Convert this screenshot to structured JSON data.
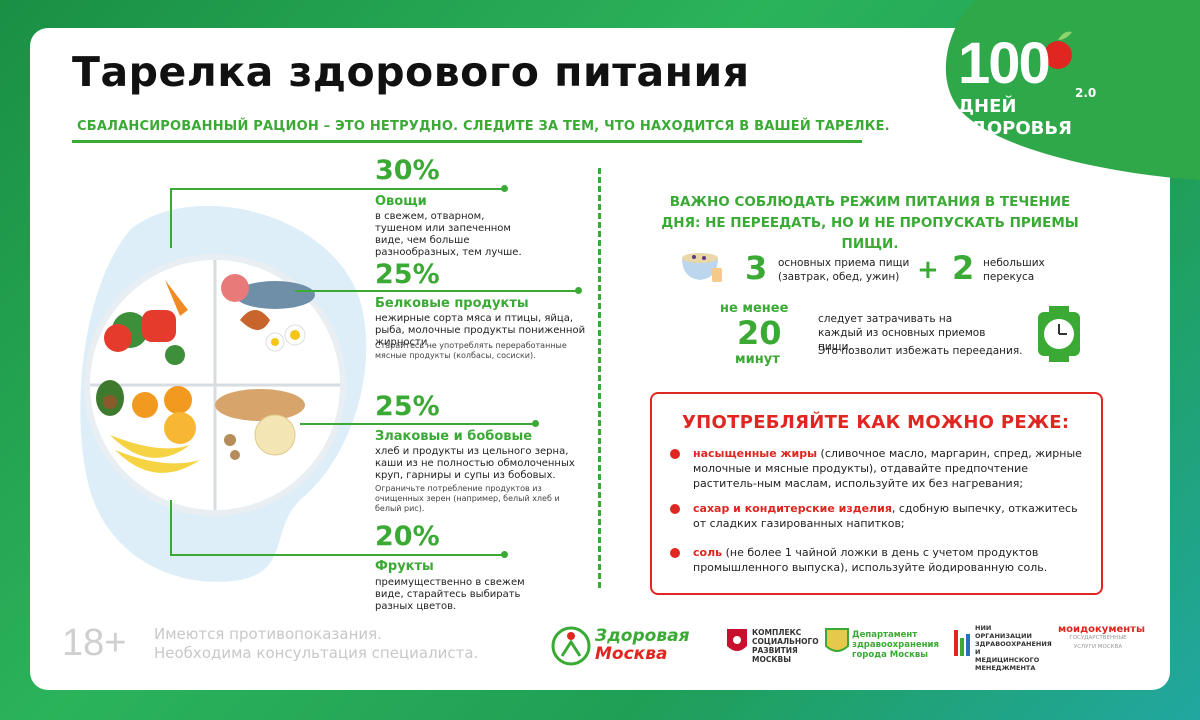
{
  "title": "Тарелка здорового питания",
  "subtitle": "СБАЛАНСИРОВАННЫЙ РАЦИОН – ЭТО НЕТРУДНО.  СЛЕДИТЕ ЗА ТЕМ, ЧТО НАХОДИТСЯ В ВАШЕЙ ТАРЕЛКЕ.",
  "logo": {
    "number": "100",
    "version": "2.0",
    "line1": "ДНЕЙ",
    "line2": "ЗДОРОВЬЯ"
  },
  "plate": [
    {
      "pct": "30%",
      "name": "Овощи",
      "desc": "в свежем, отварном, тушеном или запеченном виде, чем больше разнообразных, тем лучше.",
      "note": ""
    },
    {
      "pct": "25%",
      "name": "Белковые продукты",
      "desc": "нежирные сорта мяса и птицы, яйца, рыба, молочные продукты пониженной жирности",
      "note": "Старайтесь не употреблять переработанные мясные продукты (колбасы, сосиски)."
    },
    {
      "pct": "25%",
      "name": "Злаковые и бобовые",
      "desc": "хлеб и продукты из цельного зерна, каши из не полностью обмолоченных круп, гарниры и супы из бобовых.",
      "note": "Ограничьте потребление продуктов из очищенных зерен (например, белый хлеб и белый рис)."
    },
    {
      "pct": "20%",
      "name": "Фрукты",
      "desc": "преимущественно в свежем виде, старайтесь выбирать разных цветов.",
      "note": ""
    }
  ],
  "regime": {
    "heading": "ВАЖНО СОБЛЮДАТЬ РЕЖИМ ПИТАНИЯ В ТЕЧЕНИЕ ДНЯ: НЕ ПЕРЕЕДАТЬ, НО И НЕ ПРОПУСКАТЬ ПРИЕМЫ ПИЩИ.",
    "meals_num": "3",
    "meals_text": "основных приема пищи (завтрак, обед, ужин)",
    "plus": "+",
    "snacks_num": "2",
    "snacks_text": "небольших перекуса",
    "min_top": "не менее",
    "min_num": "20",
    "min_bottom": "минут",
    "min_text": "следует затрачивать на каждый из основных приемов пищи.",
    "min_text2": "Это позволит избежать переедания."
  },
  "limit": {
    "heading": "УПОТРЕБЛЯЙТЕ КАК МОЖНО РЕЖЕ:",
    "items": [
      {
        "key": "насыщенные жиры",
        "rest": " (сливочное масло, маргарин, спред, жирные молочные и мясные продукты), отдавайте предпочтение раститель-ным маслам, используйте их без нагревания;"
      },
      {
        "key": "сахар и кондитерские изделия",
        "rest": ", сдобную выпечку, откажитесь от сладких газированных напитков;"
      },
      {
        "key": "соль",
        "rest": " (не более 1 чайной ложки в день с учетом продуктов промышленного выпуска), используйте йодированную соль."
      }
    ]
  },
  "footer": {
    "age": "18+",
    "disc1": "Имеются противопоказания.",
    "disc2": "Необходима консультация специалиста.",
    "zm1": "Здоровая",
    "zm2": "Москва",
    "p1": "КОМПЛЕКС СОЦИАЛЬНОГО РАЗВИТИЯ МОСКВЫ",
    "p2": "Департамент здравоохранения города Москвы",
    "p3": "НИИ ОРГАНИЗАЦИИ ЗДРАВООХРАНЕНИЯ И МЕДИЦИНСКОГО МЕНЕДЖМЕНТА",
    "p4a": "мои",
    "p4b": "документы",
    "p4c": "ГОСУДАРСТВЕННЫЕ УСЛУГИ МОСКВА"
  },
  "colors": {
    "green": "#3aaa35",
    "red": "#e02620"
  }
}
